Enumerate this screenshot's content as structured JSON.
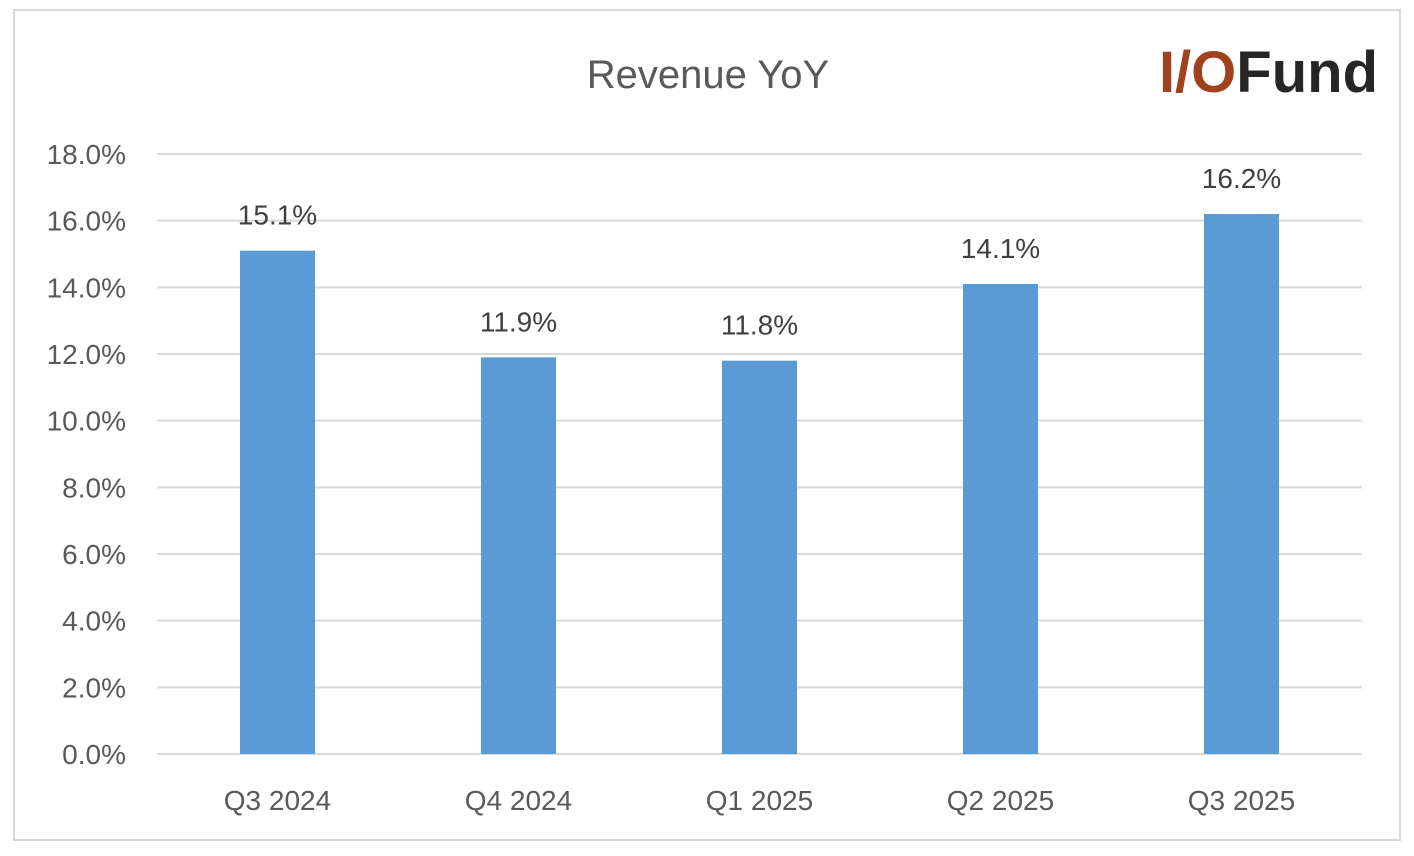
{
  "brand": {
    "logo_accent": "I/O",
    "logo_rest": "Fund",
    "accent_color": "#a0421f",
    "dark_color": "#262626"
  },
  "chart_data": {
    "type": "bar",
    "title": "Revenue YoY",
    "categories": [
      "Q3 2024",
      "Q4 2024",
      "Q1 2025",
      "Q2 2025",
      "Q3 2025"
    ],
    "values": [
      15.1,
      11.9,
      11.8,
      14.1,
      16.2
    ],
    "data_labels": [
      "15.1%",
      "11.9%",
      "11.8%",
      "14.1%",
      "16.2%"
    ],
    "yticks": [
      "0.0%",
      "2.0%",
      "4.0%",
      "6.0%",
      "8.0%",
      "10.0%",
      "12.0%",
      "14.0%",
      "16.0%",
      "18.0%"
    ],
    "ylim": [
      0,
      18
    ],
    "ystep": 2,
    "xlabel": "",
    "ylabel": "",
    "grid": true,
    "legend": "none",
    "bar_color": "#5b9bd5",
    "grid_color": "#d9d9d9"
  }
}
